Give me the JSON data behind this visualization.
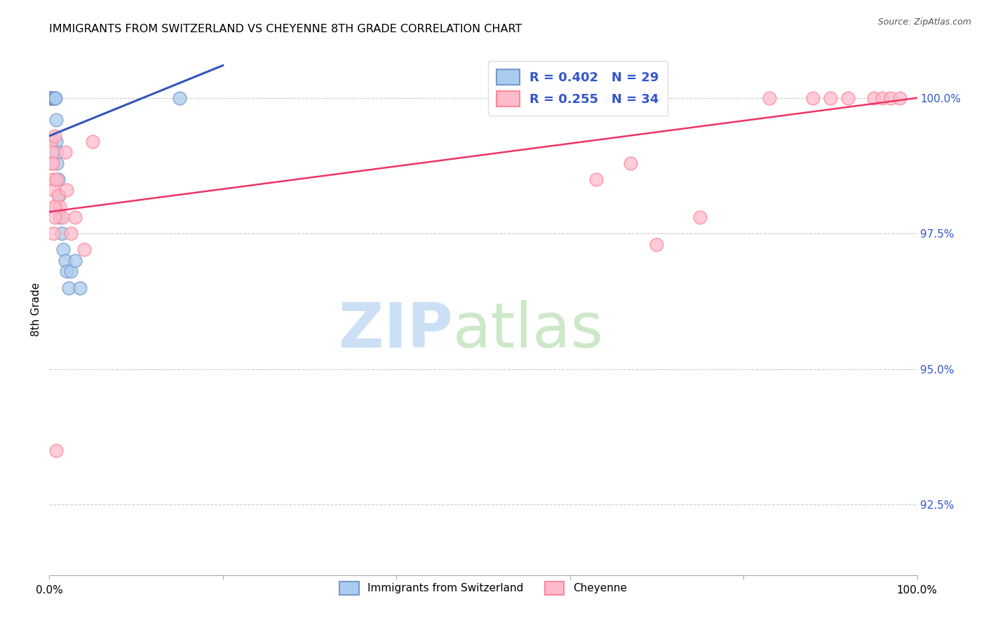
{
  "title": "IMMIGRANTS FROM SWITZERLAND VS CHEYENNE 8TH GRADE CORRELATION CHART",
  "source": "Source: ZipAtlas.com",
  "ylabel": "8th Grade",
  "ytick_values": [
    92.5,
    95.0,
    97.5,
    100.0
  ],
  "xmin": 0.0,
  "xmax": 100.0,
  "ymin": 91.2,
  "ymax": 101.0,
  "legend_blue_label": "R = 0.402   N = 29",
  "legend_pink_label": "R = 0.255   N = 34",
  "blue_scatter_x": [
    0.05,
    0.1,
    0.15,
    0.2,
    0.25,
    0.3,
    0.35,
    0.4,
    0.5,
    0.55,
    0.6,
    0.65,
    0.7,
    0.75,
    0.8,
    0.85,
    0.9,
    1.0,
    1.1,
    1.2,
    1.4,
    1.6,
    1.8,
    2.0,
    2.2,
    2.5,
    3.0,
    3.5,
    15.0
  ],
  "blue_scatter_y": [
    100.0,
    100.0,
    100.0,
    100.0,
    100.0,
    100.0,
    100.0,
    100.0,
    100.0,
    100.0,
    100.0,
    100.0,
    100.0,
    99.6,
    99.2,
    98.8,
    99.0,
    98.5,
    98.2,
    97.8,
    97.5,
    97.2,
    97.0,
    96.8,
    96.5,
    96.8,
    97.0,
    96.5,
    100.0
  ],
  "pink_scatter_x": [
    0.1,
    0.2,
    0.3,
    0.4,
    0.5,
    0.6,
    0.7,
    0.8,
    1.0,
    1.2,
    1.5,
    1.8,
    2.0,
    2.5,
    3.0,
    4.0,
    5.0,
    0.35,
    0.45,
    0.55,
    0.65,
    0.75,
    63.0,
    67.0,
    70.0,
    75.0,
    83.0,
    88.0,
    90.0,
    92.0,
    95.0,
    96.0,
    97.0,
    98.0
  ],
  "pink_scatter_y": [
    99.2,
    98.8,
    99.0,
    98.5,
    98.3,
    99.3,
    98.0,
    98.5,
    98.2,
    98.0,
    97.8,
    99.0,
    98.3,
    97.5,
    97.8,
    97.2,
    99.2,
    98.8,
    97.5,
    98.0,
    97.8,
    93.5,
    98.5,
    98.8,
    97.3,
    97.8,
    100.0,
    100.0,
    100.0,
    100.0,
    100.0,
    100.0,
    100.0,
    100.0
  ],
  "blue_line_x": [
    0.0,
    20.0
  ],
  "blue_line_y": [
    99.3,
    100.6
  ],
  "pink_line_x": [
    0.0,
    100.0
  ],
  "pink_line_y": [
    97.9,
    100.0
  ],
  "blue_line_color": "#3355bb",
  "pink_line_color": "#ee3366",
  "blue_face_color": "#aaccee",
  "blue_edge_color": "#7799cc",
  "pink_face_color": "#ffbbcc",
  "pink_edge_color": "#ff8899",
  "legend_text_color": "#3355cc",
  "grid_color": "#cccccc",
  "right_tick_color": "#3355cc",
  "watermark_zip_color": "#cce0f5",
  "watermark_atlas_color": "#cce8c8"
}
